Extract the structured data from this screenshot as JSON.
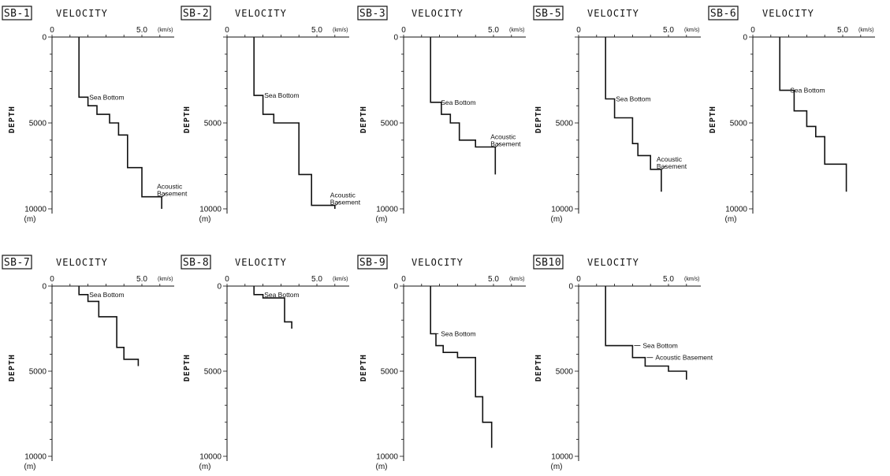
{
  "figure": {
    "velocity_axis_label": "VELOCITY",
    "depth_axis_label": "DEPTH",
    "depth_unit": "(m)",
    "velocity_unit": "(km/s)"
  },
  "chart_data": [
    {
      "type": "line",
      "title": "SB-1",
      "xlabel": "VELOCITY",
      "ylabel": "DEPTH",
      "xlim": [
        0,
        6.8
      ],
      "ylim": [
        0,
        10000
      ],
      "x_ticks": [
        "0",
        "5.0"
      ],
      "y_ticks": [
        "0",
        "5000",
        "10000"
      ],
      "x_unit": "(km/s)",
      "y_unit": "(m)",
      "profile": [
        [
          1.5,
          0
        ],
        [
          1.5,
          3500
        ],
        [
          2.0,
          3500
        ],
        [
          2.0,
          4000
        ],
        [
          2.5,
          4000
        ],
        [
          2.5,
          4500
        ],
        [
          3.2,
          4500
        ],
        [
          3.2,
          5000
        ],
        [
          3.7,
          5000
        ],
        [
          3.7,
          5700
        ],
        [
          4.2,
          5700
        ],
        [
          4.2,
          7600
        ],
        [
          5.0,
          7600
        ],
        [
          5.0,
          9300
        ],
        [
          6.1,
          9300
        ],
        [
          6.1,
          10000
        ]
      ],
      "annotations": [
        {
          "text": "Sea Bottom",
          "x": 1.5,
          "y": 3500
        },
        {
          "text": "Acoustic\nBasement",
          "x": 6.1,
          "y": 9300
        }
      ]
    },
    {
      "type": "line",
      "title": "SB-2",
      "xlabel": "VELOCITY",
      "ylabel": "DEPTH",
      "xlim": [
        0,
        6.8
      ],
      "ylim": [
        0,
        10000
      ],
      "x_ticks": [
        "0",
        "5.0"
      ],
      "y_ticks": [
        "5000",
        "10000"
      ],
      "x_unit": "(km/s)",
      "y_unit": "(m)",
      "profile": [
        [
          1.5,
          0
        ],
        [
          1.5,
          3400
        ],
        [
          2.0,
          3400
        ],
        [
          2.0,
          4500
        ],
        [
          2.6,
          4500
        ],
        [
          2.6,
          5000
        ],
        [
          4.0,
          5000
        ],
        [
          4.0,
          8000
        ],
        [
          4.7,
          8000
        ],
        [
          4.7,
          9800
        ],
        [
          6.0,
          9800
        ],
        [
          6.0,
          10000
        ]
      ],
      "annotations": [
        {
          "text": "Sea Bottom",
          "x": 1.5,
          "y": 3400
        },
        {
          "text": "Acoustic\nBasement",
          "x": 6.0,
          "y": 9800
        }
      ]
    },
    {
      "type": "line",
      "title": "SB-3",
      "xlabel": "VELOCITY",
      "ylabel": "DEPTH",
      "xlim": [
        0,
        6.8
      ],
      "ylim": [
        0,
        10000
      ],
      "x_ticks": [
        "0",
        "5.0"
      ],
      "y_ticks": [
        "0",
        "5000",
        "10000"
      ],
      "x_unit": "(km/s)",
      "y_unit": "(m)",
      "profile": [
        [
          1.5,
          0
        ],
        [
          1.5,
          3800
        ],
        [
          2.1,
          3800
        ],
        [
          2.1,
          4500
        ],
        [
          2.6,
          4500
        ],
        [
          2.6,
          5000
        ],
        [
          3.1,
          5000
        ],
        [
          3.1,
          6000
        ],
        [
          4.0,
          6000
        ],
        [
          4.0,
          6400
        ],
        [
          5.1,
          6400
        ],
        [
          5.1,
          8000
        ]
      ],
      "annotations": [
        {
          "text": "Sea Bottom",
          "x": 1.5,
          "y": 3800
        },
        {
          "text": "Acoustic\nBasement",
          "x": 5.1,
          "y": 6400
        }
      ]
    },
    {
      "type": "line",
      "title": "SB-5",
      "xlabel": "VELOCITY",
      "ylabel": "DEPTH",
      "xlim": [
        0,
        6.8
      ],
      "ylim": [
        0,
        10000
      ],
      "x_ticks": [
        "0",
        "5.0"
      ],
      "y_ticks": [
        "5000",
        "10000"
      ],
      "x_unit": "(km/s)",
      "y_unit": "(m)",
      "profile": [
        [
          1.5,
          0
        ],
        [
          1.5,
          3600
        ],
        [
          2.0,
          3600
        ],
        [
          2.0,
          4700
        ],
        [
          3.0,
          4700
        ],
        [
          3.0,
          6200
        ],
        [
          3.3,
          6200
        ],
        [
          3.3,
          6900
        ],
        [
          4.0,
          6900
        ],
        [
          4.0,
          7700
        ],
        [
          4.6,
          7700
        ],
        [
          4.6,
          9000
        ]
      ],
      "annotations": [
        {
          "text": "Sea Bottom",
          "x": 1.5,
          "y": 3600
        },
        {
          "text": "Acoustic\nBasement",
          "x": 4.6,
          "y": 7700
        }
      ]
    },
    {
      "type": "line",
      "title": "SB-6",
      "xlabel": "VELOCITY",
      "ylabel": "DEPTH",
      "xlim": [
        0,
        6.8
      ],
      "ylim": [
        0,
        10000
      ],
      "x_ticks": [
        "0",
        "5.0"
      ],
      "y_ticks": [
        "0",
        "5000",
        "10000"
      ],
      "x_unit": "(km/s)",
      "y_unit": "(m)",
      "profile": [
        [
          1.5,
          0
        ],
        [
          1.5,
          3100
        ],
        [
          2.3,
          3100
        ],
        [
          2.3,
          4300
        ],
        [
          3.0,
          4300
        ],
        [
          3.0,
          5200
        ],
        [
          3.5,
          5200
        ],
        [
          3.5,
          5800
        ],
        [
          4.0,
          5800
        ],
        [
          4.0,
          7400
        ],
        [
          5.2,
          7400
        ],
        [
          5.2,
          9000
        ]
      ],
      "annotations": [
        {
          "text": "Sea Bottom",
          "x": 1.5,
          "y": 3100
        }
      ]
    },
    {
      "type": "line",
      "title": "SB-7",
      "xlabel": "VELOCITY",
      "ylabel": "DEPTH",
      "xlim": [
        0,
        6.8
      ],
      "ylim": [
        0,
        10000
      ],
      "x_ticks": [
        "0",
        "5.0"
      ],
      "y_ticks": [
        "0",
        "5000",
        "10000"
      ],
      "x_unit": "(km/s)",
      "y_unit": "(m)",
      "profile": [
        [
          1.5,
          0
        ],
        [
          1.5,
          500
        ],
        [
          2.0,
          500
        ],
        [
          2.0,
          900
        ],
        [
          2.6,
          900
        ],
        [
          2.6,
          1800
        ],
        [
          3.6,
          1800
        ],
        [
          3.6,
          3600
        ],
        [
          4.0,
          3600
        ],
        [
          4.0,
          4300
        ],
        [
          4.8,
          4300
        ],
        [
          4.8,
          4700
        ]
      ],
      "annotations": [
        {
          "text": "Sea Bottom",
          "x": 1.5,
          "y": 500
        }
      ]
    },
    {
      "type": "line",
      "title": "SB-8",
      "xlabel": "VELOCITY",
      "ylabel": "DEPTH",
      "xlim": [
        0,
        6.8
      ],
      "ylim": [
        0,
        10000
      ],
      "x_ticks": [
        "0",
        "5.0"
      ],
      "y_ticks": [
        "0",
        "5000",
        "10000"
      ],
      "x_unit": "(km/s)",
      "y_unit": "(m)",
      "profile": [
        [
          1.5,
          0
        ],
        [
          1.5,
          500
        ],
        [
          2.0,
          500
        ],
        [
          2.0,
          700
        ],
        [
          3.2,
          700
        ],
        [
          3.2,
          2100
        ],
        [
          3.6,
          2100
        ],
        [
          3.6,
          2500
        ]
      ],
      "annotations": [
        {
          "text": "Sea Bottom",
          "x": 1.5,
          "y": 500
        }
      ]
    },
    {
      "type": "line",
      "title": "SB-9",
      "xlabel": "VELOCITY",
      "ylabel": "DEPTH",
      "xlim": [
        0,
        6.8
      ],
      "ylim": [
        0,
        10000
      ],
      "x_ticks": [
        "0",
        "5.0"
      ],
      "y_ticks": [
        "0",
        "5000",
        "10000"
      ],
      "x_unit": "(km/s)",
      "y_unit": "(m)",
      "profile": [
        [
          1.5,
          0
        ],
        [
          1.5,
          2800
        ],
        [
          1.8,
          2800
        ],
        [
          1.8,
          3500
        ],
        [
          2.2,
          3500
        ],
        [
          2.2,
          3900
        ],
        [
          3.0,
          3900
        ],
        [
          3.0,
          4200
        ],
        [
          4.0,
          4200
        ],
        [
          4.0,
          6500
        ],
        [
          4.4,
          6500
        ],
        [
          4.4,
          8000
        ],
        [
          4.9,
          8000
        ],
        [
          4.9,
          9500
        ]
      ],
      "annotations": [
        {
          "text": "Sea Bottom",
          "x": 1.5,
          "y": 2800
        }
      ]
    },
    {
      "type": "line",
      "title": "SB10",
      "xlabel": "VELOCITY",
      "ylabel": "DEPTH",
      "xlim": [
        0,
        6.8
      ],
      "ylim": [
        0,
        10000
      ],
      "x_ticks": [
        "0",
        "5.0"
      ],
      "y_ticks": [
        "0",
        "5000",
        "10000"
      ],
      "x_unit": "(km/s)",
      "y_unit": "(m)",
      "profile": [
        [
          1.5,
          0
        ],
        [
          1.5,
          3500
        ],
        [
          3.0,
          3500
        ],
        [
          3.0,
          4200
        ],
        [
          3.7,
          4200
        ],
        [
          3.7,
          4700
        ],
        [
          5.0,
          4700
        ],
        [
          5.0,
          5000
        ],
        [
          6.0,
          5000
        ],
        [
          6.0,
          5500
        ]
      ],
      "annotations": [
        {
          "text": "Sea Bottom",
          "x": 3.0,
          "y": 3500
        },
        {
          "text": "Acoustic Basement",
          "x": 3.7,
          "y": 4200
        }
      ]
    }
  ]
}
